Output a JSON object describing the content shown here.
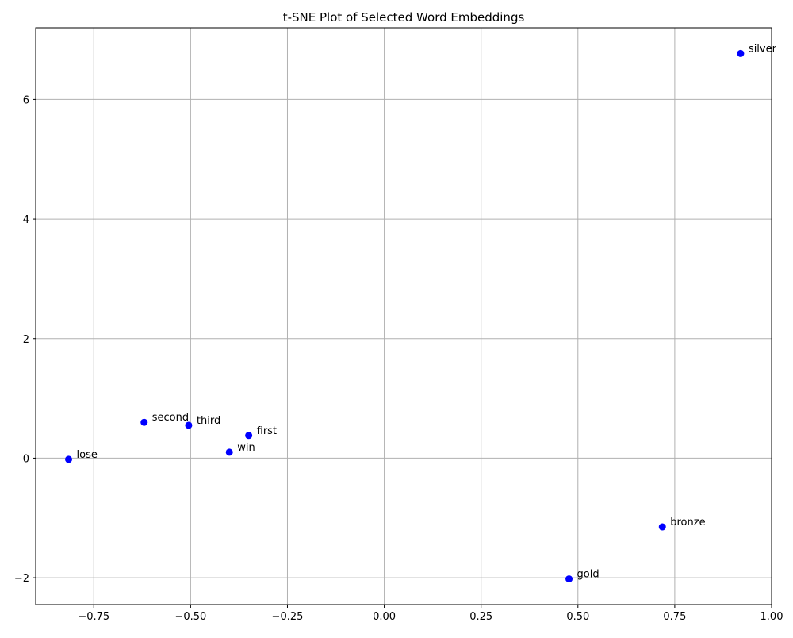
{
  "colors": {
    "point": "#0000ff",
    "grid": "#b0b0b0",
    "axis": "#000000",
    "background": "#ffffff"
  },
  "chart_data": {
    "type": "scatter",
    "title": "t-SNE Plot of Selected Word Embeddings",
    "xlabel": "",
    "ylabel": "",
    "xlim": [
      -0.9,
      1.0
    ],
    "ylim": [
      -2.45,
      7.2
    ],
    "x_ticks": [
      -0.75,
      -0.5,
      -0.25,
      0.0,
      0.25,
      0.5,
      0.75,
      1.0
    ],
    "x_tick_labels": [
      "−0.75",
      "−0.50",
      "−0.25",
      "0.00",
      "0.25",
      "0.50",
      "0.75",
      "1.00"
    ],
    "y_ticks": [
      -2,
      0,
      2,
      4,
      6
    ],
    "y_tick_labels": [
      "−2",
      "0",
      "2",
      "4",
      "6"
    ],
    "grid": true,
    "legend": "none",
    "points": [
      {
        "label": "silver",
        "x": 0.92,
        "y": 6.77
      },
      {
        "label": "second",
        "x": -0.62,
        "y": 0.6
      },
      {
        "label": "third",
        "x": -0.505,
        "y": 0.55
      },
      {
        "label": "first",
        "x": -0.35,
        "y": 0.38
      },
      {
        "label": "win",
        "x": -0.4,
        "y": 0.1
      },
      {
        "label": "lose",
        "x": -0.815,
        "y": -0.02
      },
      {
        "label": "bronze",
        "x": 0.718,
        "y": -1.15
      },
      {
        "label": "gold",
        "x": 0.477,
        "y": -2.02
      }
    ]
  }
}
